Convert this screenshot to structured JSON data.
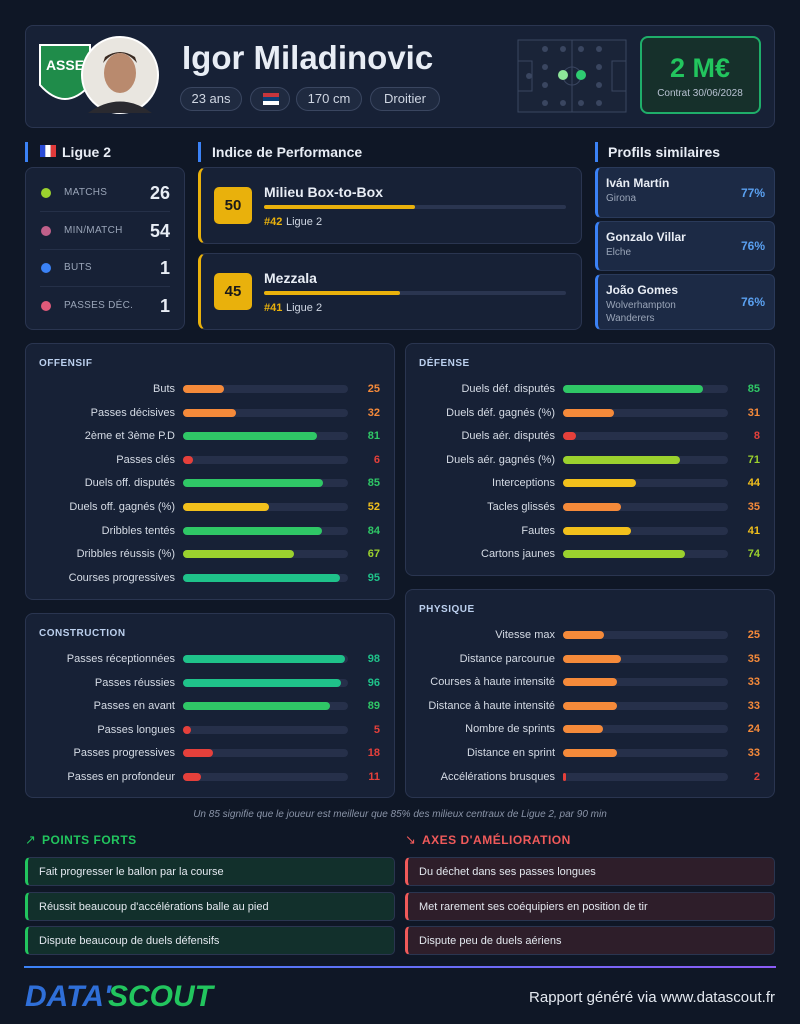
{
  "header": {
    "name": "Igor Miladinovic",
    "tags": [
      "23 ans",
      "170 cm",
      "Droitier"
    ],
    "market_value": "2 M€",
    "contract": "Contrat 30/06/2028"
  },
  "league": {
    "name": "Ligue 2",
    "stats": [
      {
        "label": "MATCHS",
        "value": 26
      },
      {
        "label": "MIN/MATCH",
        "value": 54
      },
      {
        "label": "BUTS",
        "value": 1
      },
      {
        "label": "PASSES DÉC.",
        "value": 1
      }
    ]
  },
  "performance": {
    "title": "Indice de Performance",
    "xlim": [
      0,
      100
    ],
    "items": [
      {
        "score": 50,
        "role": "Milieu Box-to-Box",
        "rank": "#42",
        "league": "Ligue 2"
      },
      {
        "score": 45,
        "role": "Mezzala",
        "rank": "#41",
        "league": "Ligue 2"
      }
    ]
  },
  "similar": {
    "title": "Profils similaires",
    "items": [
      {
        "name": "Iván Martín",
        "club": "Girona",
        "match": "77%"
      },
      {
        "name": "Gonzalo Villar",
        "club": "Elche",
        "match": "76%"
      },
      {
        "name": "João Gomes",
        "club": "Wolverhampton Wanderers",
        "match": "76%"
      }
    ]
  },
  "sections": [
    {
      "title": "OFFENSIF",
      "xlim": [
        0,
        100
      ],
      "rows": [
        {
          "label": "Buts",
          "value": 25
        },
        {
          "label": "Passes décisives",
          "value": 32
        },
        {
          "label": "2ème et 3ème P.D",
          "value": 81
        },
        {
          "label": "Passes clés",
          "value": 6
        },
        {
          "label": "Duels off. disputés",
          "value": 85
        },
        {
          "label": "Duels off. gagnés (%)",
          "value": 52
        },
        {
          "label": "Dribbles tentés",
          "value": 84
        },
        {
          "label": "Dribbles réussis (%)",
          "value": 67
        },
        {
          "label": "Courses progressives",
          "value": 95
        }
      ]
    },
    {
      "title": "DÉFENSE",
      "xlim": [
        0,
        100
      ],
      "rows": [
        {
          "label": "Duels déf. disputés",
          "value": 85
        },
        {
          "label": "Duels déf. gagnés (%)",
          "value": 31
        },
        {
          "label": "Duels aér. disputés",
          "value": 8
        },
        {
          "label": "Duels aér. gagnés (%)",
          "value": 71
        },
        {
          "label": "Interceptions",
          "value": 44
        },
        {
          "label": "Tacles glissés",
          "value": 35
        },
        {
          "label": "Fautes",
          "value": 41
        },
        {
          "label": "Cartons jaunes",
          "value": 74
        }
      ]
    },
    {
      "title": "CONSTRUCTION",
      "xlim": [
        0,
        100
      ],
      "rows": [
        {
          "label": "Passes réceptionnées",
          "value": 98
        },
        {
          "label": "Passes réussies",
          "value": 96
        },
        {
          "label": "Passes en avant",
          "value": 89
        },
        {
          "label": "Passes longues",
          "value": 5
        },
        {
          "label": "Passes progressives",
          "value": 18
        },
        {
          "label": "Passes en profondeur",
          "value": 11
        }
      ]
    },
    {
      "title": "PHYSIQUE",
      "xlim": [
        0,
        100
      ],
      "rows": [
        {
          "label": "Vitesse max",
          "value": 25
        },
        {
          "label": "Distance parcourue",
          "value": 35
        },
        {
          "label": "Courses à haute intensité",
          "value": 33
        },
        {
          "label": "Distance à haute intensité",
          "value": 33
        },
        {
          "label": "Nombre de sprints",
          "value": 24
        },
        {
          "label": "Distance en sprint",
          "value": 33
        },
        {
          "label": "Accélérations brusques",
          "value": 2
        }
      ]
    }
  ],
  "footnote": "Un 85 signifie que le joueur est meilleur que 85% des milieux centraux de Ligue 2, par 90 min",
  "strengths": {
    "title": "POINTS FORTS",
    "items": [
      "Fait progresser le ballon par la course",
      "Réussit beaucoup d'accélérations balle au pied",
      "Dispute beaucoup de duels défensifs"
    ]
  },
  "improvements": {
    "title": "AXES D'AMÉLIORATION",
    "items": [
      "Du déchet dans ses passes longues",
      "Met rarement ses coéquipiers en position de tir",
      "Dispute peu de duels aériens"
    ]
  },
  "footer": {
    "logo": [
      "DATA'",
      "SCOUT"
    ],
    "credit": "Rapport généré via www.datascout.fr"
  }
}
